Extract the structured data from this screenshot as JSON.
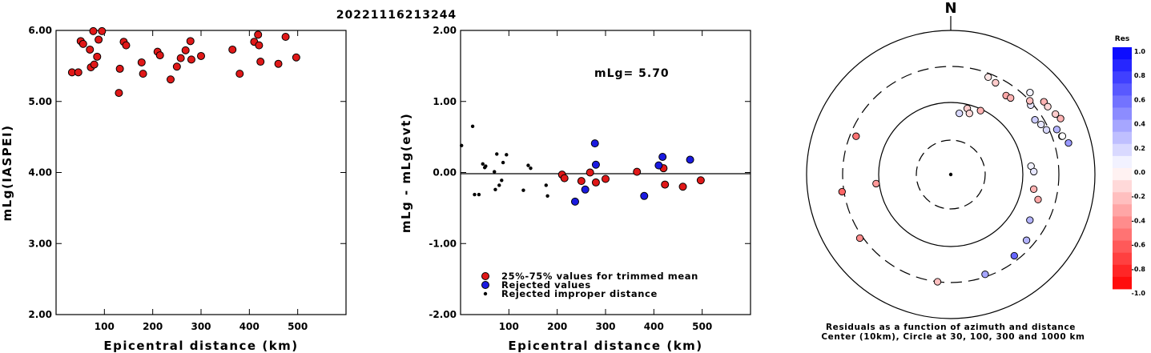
{
  "title": "20221116213244",
  "left_chart": {
    "xlabel": "Epicentral distance (km)",
    "ylabel": "mLg(IASPEI)",
    "x_ticks": [
      "100",
      "200",
      "300",
      "400",
      "500"
    ],
    "y_ticks": [
      "2.00",
      "3.00",
      "4.00",
      "5.00",
      "6.00"
    ]
  },
  "middle_chart": {
    "xlabel": "Epicentral distance (km)",
    "ylabel": "mLg - mLg(evt)",
    "x_ticks": [
      "100",
      "200",
      "300",
      "400",
      "500"
    ],
    "y_ticks": [
      "-2.00",
      "-1.00",
      "0.00",
      "1.00",
      "2.00"
    ],
    "annotation": "mLg= 5.70",
    "legend": [
      "25%-75% values for trimmed mean",
      "Rejected values",
      "Rejected improper distance"
    ]
  },
  "polar_chart": {
    "north_label": "N",
    "caption_line1": "Residuals as a function of azimuth and distance",
    "caption_line2": "Center (10km), Circle at 30, 100, 300 and 1000 km"
  },
  "colorbar": {
    "title": "Res",
    "labels": [
      "1.0",
      "0.8",
      "0.6",
      "0.4",
      "0.2",
      "0.0",
      "-0.2",
      "-0.4",
      "-0.6",
      "-0.8",
      "-1.0"
    ]
  },
  "colors": {
    "trimmed": "#e01818",
    "rejected": "#1a1ae0",
    "improper": "#000000"
  },
  "chart_data": [
    {
      "type": "scatter",
      "xlabel": "Epicentral distance (km)",
      "ylabel": "mLg(IASPEI)",
      "xlim": [
        0,
        600
      ],
      "ylim": [
        2.0,
        6.0
      ],
      "grid": false,
      "series": [
        {
          "x": [
            33,
            46,
            51,
            56,
            70,
            72,
            77,
            79,
            85,
            88,
            95,
            130,
            132,
            140,
            145,
            177,
            180,
            210,
            215,
            237,
            250,
            258,
            268,
            278,
            280,
            300,
            365,
            380,
            410,
            418,
            420,
            423,
            460,
            475,
            497
          ],
          "y": [
            5.41,
            5.41,
            5.85,
            5.81,
            5.73,
            5.48,
            5.99,
            5.52,
            5.63,
            5.87,
            5.99,
            5.12,
            5.46,
            5.84,
            5.79,
            5.55,
            5.39,
            5.7,
            5.65,
            5.31,
            5.49,
            5.61,
            5.72,
            5.85,
            5.59,
            5.64,
            5.73,
            5.39,
            5.84,
            5.94,
            5.79,
            5.56,
            5.53,
            5.91,
            5.62
          ]
        }
      ]
    },
    {
      "type": "scatter",
      "xlabel": "Epicentral distance (km)",
      "ylabel": "mLg - mLg(evt)",
      "xlim": [
        0,
        600
      ],
      "ylim": [
        -2.0,
        2.0
      ],
      "grid": false,
      "series": [
        {
          "name": "25%-75% values for trimmed mean",
          "x": [
            210,
            215,
            250,
            268,
            280,
            300,
            365,
            420,
            423,
            460,
            497
          ],
          "y": [
            -0.03,
            -0.08,
            -0.12,
            0.0,
            -0.14,
            -0.09,
            0.01,
            0.06,
            -0.17,
            -0.2,
            -0.11
          ]
        },
        {
          "name": "Rejected values",
          "x": [
            237,
            258,
            278,
            280,
            380,
            410,
            418,
            475
          ],
          "y": [
            -0.41,
            -0.24,
            0.41,
            0.11,
            -0.33,
            0.1,
            0.22,
            0.18
          ]
        },
        {
          "name": "Rejected improper distance",
          "x": [
            2,
            25,
            29,
            38,
            46,
            50,
            52,
            70,
            72,
            75,
            80,
            85,
            88,
            95,
            130,
            140,
            145,
            177,
            180
          ],
          "y": [
            0.38,
            0.65,
            -0.31,
            -0.31,
            0.12,
            0.07,
            0.09,
            0.01,
            -0.24,
            0.26,
            -0.18,
            -0.11,
            0.14,
            0.25,
            -0.25,
            0.1,
            0.06,
            -0.18,
            -0.33
          ]
        }
      ]
    },
    {
      "type": "scatter",
      "polar": true,
      "center_distance_km": 10,
      "ring_distances_km": [
        30,
        100,
        300,
        1000
      ],
      "note": "azimuth in degrees clockwise from north; residual in mag units",
      "series": [
        {
          "x_azimuth": [
            35,
            38,
            26,
            21,
            49,
            47,
            44,
            52,
            55,
            60,
            63,
            57,
            61,
            65,
            67,
            71,
            71,
            75,
            84,
            88,
            100,
            106,
            120,
            131,
            142,
            161,
            187,
            235,
            261,
            263,
            292,
            25,
            14,
            8,
            17
          ],
          "x_distance_km": [
            210,
            215,
            250,
            268,
            280,
            300,
            365,
            420,
            423,
            460,
            497,
            237,
            258,
            278,
            380,
            410,
            418,
            475,
            130,
            140,
            145,
            177,
            180,
            237,
            258,
            278,
            300,
            330,
            320,
            110,
            250,
            95,
            88,
            72,
            77
          ],
          "y_residual": [
            -0.35,
            -0.3,
            -0.2,
            -0.1,
            0.1,
            -0.25,
            0.05,
            -0.3,
            -0.15,
            -0.2,
            -0.3,
            0.2,
            0.1,
            0.15,
            0.3,
            0.25,
            0.0,
            0.4,
            0.05,
            0.1,
            -0.3,
            -0.35,
            0.3,
            0.3,
            0.6,
            0.35,
            -0.25,
            -0.45,
            -0.6,
            -0.4,
            -0.55,
            -0.3,
            -0.2,
            0.15,
            -0.15
          ]
        }
      ]
    }
  ]
}
